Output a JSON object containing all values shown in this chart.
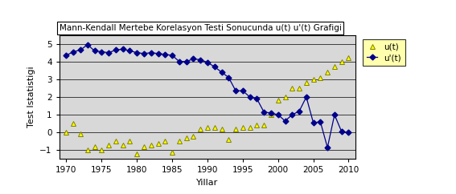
{
  "title": "Mann-Kendall Mertebe Korelasyon Testi Sonucunda u(t) u'(t) Grafigi",
  "xlabel": "Yillar",
  "ylabel": "Test Istatistigi",
  "xlim": [
    1969,
    2011
  ],
  "ylim": [
    -1.5,
    5.5
  ],
  "yticks": [
    -1,
    0,
    1,
    2,
    3,
    4,
    5
  ],
  "xticks": [
    1970,
    1975,
    1980,
    1985,
    1990,
    1995,
    2000,
    2005,
    2010
  ],
  "fig_bg_color": "#ffffff",
  "plot_bg_color": "#d8d8d8",
  "ut_color": "#ffff00",
  "ut_edge_color": "#808000",
  "upt_color": "#00008b",
  "legend_bg": "#ffff99",
  "u_t": {
    "years": [
      1970,
      1971,
      1972,
      1973,
      1974,
      1975,
      1976,
      1977,
      1978,
      1979,
      1980,
      1981,
      1982,
      1983,
      1984,
      1985,
      1986,
      1987,
      1988,
      1989,
      1990,
      1991,
      1992,
      1993,
      1994,
      1995,
      1996,
      1997,
      1998,
      1999,
      2000,
      2001,
      2002,
      2003,
      2004,
      2005,
      2006,
      2007,
      2008,
      2009,
      2010
    ],
    "values": [
      0.0,
      0.5,
      -0.1,
      -1.0,
      -0.8,
      -1.0,
      -0.7,
      -0.5,
      -0.7,
      -0.5,
      -1.2,
      -0.8,
      -0.7,
      -0.6,
      -0.5,
      -1.1,
      -0.5,
      -0.3,
      -0.2,
      0.2,
      0.3,
      0.3,
      0.2,
      -0.4,
      0.2,
      0.3,
      0.3,
      0.4,
      0.4,
      1.0,
      1.8,
      2.0,
      2.5,
      2.5,
      2.8,
      3.0,
      3.1,
      3.4,
      3.7,
      4.0,
      4.2
    ]
  },
  "u_prime_t": {
    "years": [
      1970,
      1971,
      1972,
      1973,
      1974,
      1975,
      1976,
      1977,
      1978,
      1979,
      1980,
      1981,
      1982,
      1983,
      1984,
      1985,
      1986,
      1987,
      1988,
      1989,
      1990,
      1991,
      1992,
      1993,
      1994,
      1995,
      1996,
      1997,
      1998,
      1999,
      2000,
      2001,
      2002,
      2003,
      2004,
      2005,
      2006,
      2007,
      2008,
      2009,
      2010
    ],
    "values": [
      4.35,
      4.55,
      4.65,
      4.95,
      4.6,
      4.55,
      4.5,
      4.65,
      4.7,
      4.6,
      4.5,
      4.45,
      4.5,
      4.45,
      4.4,
      4.35,
      4.0,
      4.0,
      4.15,
      4.1,
      3.95,
      3.7,
      3.4,
      3.1,
      2.35,
      2.35,
      2.0,
      1.9,
      1.15,
      1.1,
      1.0,
      0.65,
      1.0,
      1.2,
      2.0,
      0.55,
      0.6,
      -0.85,
      1.0,
      0.05,
      0.0
    ]
  }
}
